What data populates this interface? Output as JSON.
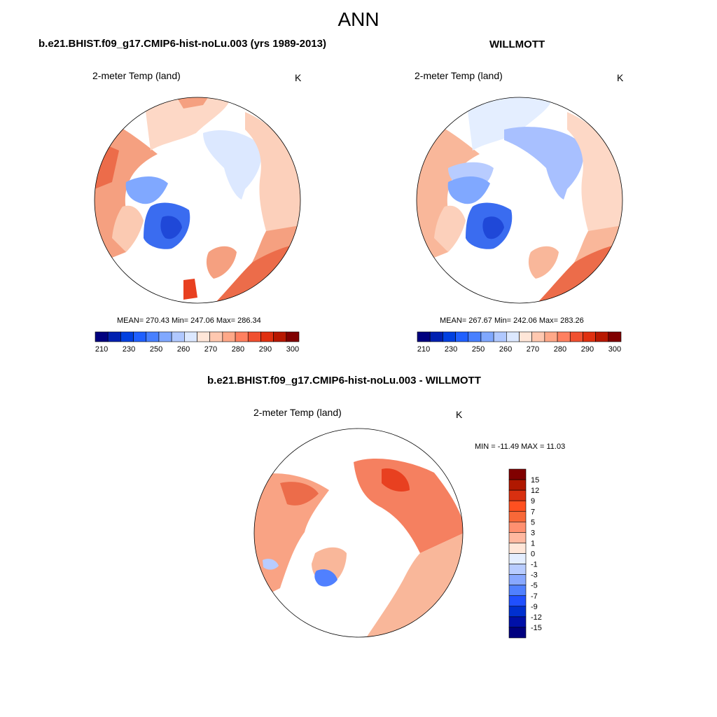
{
  "title": "ANN",
  "panels": [
    {
      "title": "b.e21.BHIST.f09_g17.CMIP6-hist-noLu.003 (yrs 1989-2013)",
      "variable": "2-meter Temp (land)",
      "units": "K",
      "stats": "MEAN= 270.43  Min= 247.06  Max= 286.34"
    },
    {
      "title": "WILLMOTT",
      "variable": "2-meter Temp (land)",
      "units": "K",
      "stats": "MEAN= 267.67  Min= 242.06  Max= 283.26"
    },
    {
      "title": "b.e21.BHIST.f09_g17.CMIP6-hist-noLu.003 - WILLMOTT",
      "variable": "2-meter Temp (land)",
      "units": "K",
      "stats": "MIN = -11.49 MAX =  11.03"
    }
  ],
  "abs_colorbar": {
    "labels": [
      "210",
      "230",
      "250",
      "260",
      "270",
      "280",
      "290",
      "300"
    ],
    "colors": [
      "#00007f",
      "#0020b0",
      "#0040e0",
      "#2060ff",
      "#4880ff",
      "#80a8ff",
      "#b0c8ff",
      "#dce8ff",
      "#ffe6d8",
      "#ffc8b0",
      "#ffa888",
      "#ff8060",
      "#f05030",
      "#e03010",
      "#b81800",
      "#800000"
    ]
  },
  "diff_colorbar": {
    "labels": [
      "15",
      "12",
      "9",
      "7",
      "5",
      "3",
      "1",
      "0",
      "-1",
      "-3",
      "-5",
      "-7",
      "-9",
      "-12",
      "-15"
    ],
    "colors": [
      "#800000",
      "#b01800",
      "#d83010",
      "#ff5020",
      "#f86838",
      "#ff9070",
      "#ffb8a0",
      "#ffe6d8",
      "#e4eeff",
      "#b8ccff",
      "#88a8ff",
      "#5080ff",
      "#2050ff",
      "#0030d0",
      "#0010a8",
      "#00007f"
    ]
  }
}
